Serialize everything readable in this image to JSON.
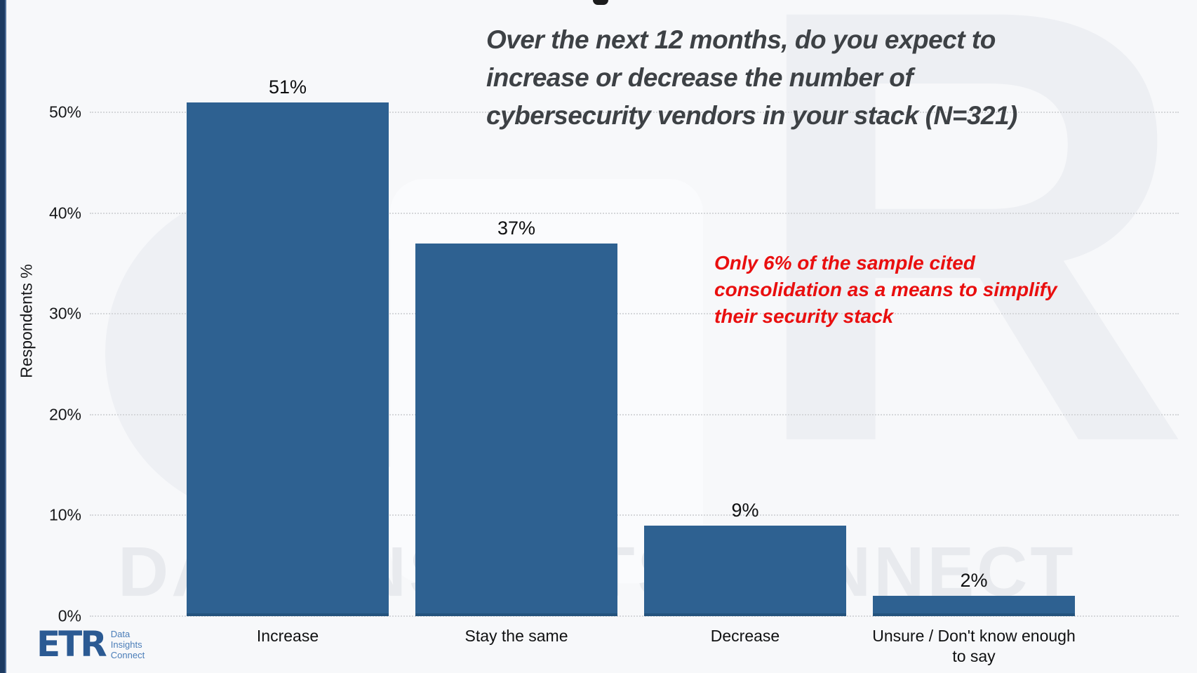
{
  "title": {
    "line1": "Over the next 12 months, do you expect to",
    "line2": "increase or decrease the number of",
    "line3": "cybersecurity vendors in your stack (N=321)",
    "color": "#3d4145"
  },
  "annotation": {
    "line1": "Only 6% of the sample cited",
    "line2": "consolidation as a means to simplify",
    "line3": "their security stack",
    "color": "#e90f0f"
  },
  "watermark": {
    "text": "DATA INSIGHTS CONNECT",
    "letter": "R"
  },
  "logo": {
    "brand": "ETR",
    "tagline_line1": "Data",
    "tagline_line2": "Insights",
    "tagline_line3": "Connect",
    "brand_color": "#2b5a93"
  },
  "chart_data": {
    "type": "bar",
    "title": "Over the next 12 months, do you expect to increase or decrease the number of cybersecurity vendors in your stack (N=321)",
    "categories": [
      "Increase",
      "Stay the same",
      "Decrease",
      "Unsure / Don't know enough to say"
    ],
    "values": [
      51,
      37,
      9,
      2
    ],
    "value_labels": [
      "51%",
      "37%",
      "9%",
      "2%"
    ],
    "xlabel": "",
    "ylabel": "Respondents %",
    "ylim": [
      0,
      55
    ],
    "yticks": [
      "0%",
      "10%",
      "20%",
      "30%",
      "40%",
      "50%"
    ],
    "grid": "horizontal dotted",
    "legend": "none",
    "bar_color": "#2e6191",
    "annotation": "Only 6% of the sample cited consolidation as a means to simplify their security stack"
  }
}
